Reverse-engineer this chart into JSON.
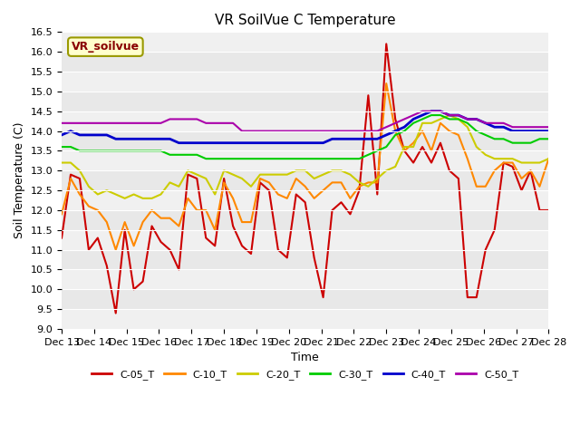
{
  "title": "VR SoilVue C Temperature",
  "xlabel": "Time",
  "ylabel": "Soil Temperature (C)",
  "ylim": [
    9.0,
    16.5
  ],
  "yticks": [
    9.0,
    9.5,
    10.0,
    10.5,
    11.0,
    11.5,
    12.0,
    12.5,
    13.0,
    13.5,
    14.0,
    14.5,
    15.0,
    15.5,
    16.0,
    16.5
  ],
  "fig_bg_color": "#ffffff",
  "plot_bg_color": "#e8e8e8",
  "legend_label": "VR_soilvue",
  "legend_box_bg": "#ffffcc",
  "legend_box_edge": "#999900",
  "legend_text_color": "#880000",
  "grid_color": "#ffffff",
  "series_order": [
    "C-05_T",
    "C-10_T",
    "C-20_T",
    "C-30_T",
    "C-40_T",
    "C-50_T"
  ],
  "series": {
    "C-05_T": {
      "color": "#cc0000",
      "lw": 1.5,
      "values": [
        11.3,
        12.9,
        12.8,
        11.0,
        11.3,
        10.6,
        9.4,
        11.5,
        10.0,
        10.2,
        11.6,
        11.2,
        11.0,
        10.5,
        12.9,
        12.8,
        11.3,
        11.1,
        12.8,
        11.6,
        11.1,
        10.9,
        12.7,
        12.5,
        11.0,
        10.8,
        12.4,
        12.2,
        10.8,
        9.8,
        12.0,
        12.2,
        11.9,
        12.5,
        14.9,
        12.4,
        16.2,
        14.3,
        13.5,
        13.2,
        13.6,
        13.2,
        13.7,
        13.0,
        12.8,
        9.8,
        9.8,
        11.0,
        11.5,
        13.2,
        13.1,
        12.5,
        13.0,
        12.0,
        12.0
      ]
    },
    "C-10_T": {
      "color": "#ff8800",
      "lw": 1.5,
      "values": [
        11.9,
        12.8,
        12.4,
        12.1,
        12.0,
        11.7,
        11.0,
        11.7,
        11.1,
        11.7,
        12.0,
        11.8,
        11.8,
        11.6,
        12.3,
        12.0,
        12.0,
        11.5,
        12.7,
        12.3,
        11.7,
        11.7,
        12.8,
        12.7,
        12.4,
        12.3,
        12.8,
        12.6,
        12.3,
        12.5,
        12.7,
        12.7,
        12.3,
        12.6,
        12.7,
        12.7,
        15.2,
        14.0,
        13.5,
        13.7,
        14.0,
        13.5,
        14.2,
        14.0,
        13.9,
        13.3,
        12.6,
        12.6,
        13.0,
        13.2,
        13.2,
        12.8,
        13.0,
        12.6,
        13.3
      ]
    },
    "C-20_T": {
      "color": "#cccc00",
      "lw": 1.5,
      "values": [
        13.2,
        13.2,
        13.0,
        12.6,
        12.4,
        12.5,
        12.4,
        12.3,
        12.4,
        12.3,
        12.3,
        12.4,
        12.7,
        12.6,
        13.0,
        12.9,
        12.8,
        12.4,
        13.0,
        12.9,
        12.8,
        12.6,
        12.9,
        12.9,
        12.9,
        12.9,
        13.0,
        13.0,
        12.8,
        12.9,
        13.0,
        13.0,
        12.9,
        12.7,
        12.6,
        12.8,
        13.0,
        13.1,
        13.6,
        13.6,
        14.2,
        14.2,
        14.3,
        14.4,
        14.3,
        14.1,
        13.6,
        13.4,
        13.3,
        13.3,
        13.3,
        13.2,
        13.2,
        13.2,
        13.3
      ]
    },
    "C-30_T": {
      "color": "#00cc00",
      "lw": 1.5,
      "values": [
        13.6,
        13.6,
        13.5,
        13.5,
        13.5,
        13.5,
        13.5,
        13.5,
        13.5,
        13.5,
        13.5,
        13.5,
        13.4,
        13.4,
        13.4,
        13.4,
        13.3,
        13.3,
        13.3,
        13.3,
        13.3,
        13.3,
        13.3,
        13.3,
        13.3,
        13.3,
        13.3,
        13.3,
        13.3,
        13.3,
        13.3,
        13.3,
        13.3,
        13.3,
        13.4,
        13.5,
        13.6,
        13.9,
        14.0,
        14.2,
        14.3,
        14.4,
        14.4,
        14.3,
        14.3,
        14.2,
        14.0,
        13.9,
        13.8,
        13.8,
        13.7,
        13.7,
        13.7,
        13.8,
        13.8
      ]
    },
    "C-40_T": {
      "color": "#0000cc",
      "lw": 2.0,
      "values": [
        13.9,
        14.0,
        13.9,
        13.9,
        13.9,
        13.9,
        13.8,
        13.8,
        13.8,
        13.8,
        13.8,
        13.8,
        13.8,
        13.7,
        13.7,
        13.7,
        13.7,
        13.7,
        13.7,
        13.7,
        13.7,
        13.7,
        13.7,
        13.7,
        13.7,
        13.7,
        13.7,
        13.7,
        13.7,
        13.7,
        13.8,
        13.8,
        13.8,
        13.8,
        13.8,
        13.8,
        13.9,
        14.0,
        14.1,
        14.3,
        14.4,
        14.5,
        14.5,
        14.4,
        14.4,
        14.3,
        14.3,
        14.2,
        14.1,
        14.1,
        14.0,
        14.0,
        14.0,
        14.0,
        14.0
      ]
    },
    "C-50_T": {
      "color": "#aa00aa",
      "lw": 1.5,
      "values": [
        14.2,
        14.2,
        14.2,
        14.2,
        14.2,
        14.2,
        14.2,
        14.2,
        14.2,
        14.2,
        14.2,
        14.2,
        14.3,
        14.3,
        14.3,
        14.3,
        14.2,
        14.2,
        14.2,
        14.2,
        14.0,
        14.0,
        14.0,
        14.0,
        14.0,
        14.0,
        14.0,
        14.0,
        14.0,
        14.0,
        14.0,
        14.0,
        14.0,
        14.0,
        14.0,
        14.0,
        14.1,
        14.2,
        14.3,
        14.4,
        14.5,
        14.5,
        14.5,
        14.4,
        14.4,
        14.3,
        14.3,
        14.2,
        14.2,
        14.2,
        14.1,
        14.1,
        14.1,
        14.1,
        14.1
      ]
    }
  },
  "num_points": 55,
  "xtick_labels": [
    "Dec 13",
    "Dec 14",
    "Dec 15",
    "Dec 16",
    "Dec 17",
    "Dec 18",
    "Dec 19",
    "Dec 20",
    "Dec 21",
    "Dec 22",
    "Dec 23",
    "Dec 24",
    "Dec 25",
    "Dec 26",
    "Dec 27",
    "Dec 28"
  ],
  "title_fontsize": 11,
  "axis_label_fontsize": 9,
  "tick_fontsize": 8
}
